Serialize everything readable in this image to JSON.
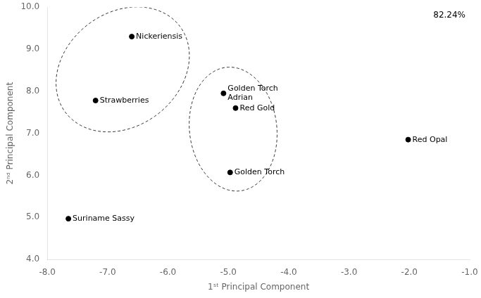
{
  "chart_data": {
    "type": "scatter",
    "xlabel": "1ˢᵗ Principal Component",
    "ylabel": "2ⁿᵈ Principal Component",
    "annotation": "82.24%",
    "x": [
      -6.6,
      -7.2,
      -7.65,
      -5.08,
      -4.88,
      -4.97,
      -2.02
    ],
    "values": [
      9.3,
      7.78,
      4.97,
      7.95,
      7.6,
      6.07,
      6.85
    ],
    "labels": [
      "Nickeriensis",
      "Strawberries",
      "Suriname Sassy",
      "Golden Torch\nAdrian",
      "Red Gold",
      "Golden Torch",
      "Red Opal"
    ],
    "color": "#000000",
    "ellipses": [
      {
        "cx": -6.75,
        "cy": 8.52,
        "width": 2.1,
        "height": 3.05,
        "angle": -18,
        "color": "#333333",
        "line_style": "dashed"
      },
      {
        "cx": -4.92,
        "cy": 7.1,
        "width": 1.45,
        "height": 2.95,
        "angle": 3,
        "color": "#333333",
        "line_style": "dashed"
      }
    ],
    "xlim": [
      -8.0,
      -1.0
    ],
    "ylim": [
      4.0,
      10.0
    ],
    "xticks": [
      {
        "value": -8.0,
        "label": "-8.0"
      },
      {
        "value": -7.0,
        "label": "-7.0"
      },
      {
        "value": -6.0,
        "label": "-6.0"
      },
      {
        "value": -5.0,
        "label": "-5.0"
      },
      {
        "value": -4.0,
        "label": "-4.0"
      },
      {
        "value": -3.0,
        "label": "-3.0"
      },
      {
        "value": -2.0,
        "label": "-2.0"
      },
      {
        "value": -1.0,
        "label": "-1.0"
      }
    ],
    "yticks": [
      {
        "value": 4.0,
        "label": "4.0"
      },
      {
        "value": 5.0,
        "label": "5.0"
      },
      {
        "value": 6.0,
        "label": "6.0"
      },
      {
        "value": 7.0,
        "label": "7.0"
      },
      {
        "value": 8.0,
        "label": "8.0"
      },
      {
        "value": 9.0,
        "label": "9.0"
      },
      {
        "value": 10.0,
        "label": "10.0"
      }
    ],
    "grid": false
  }
}
